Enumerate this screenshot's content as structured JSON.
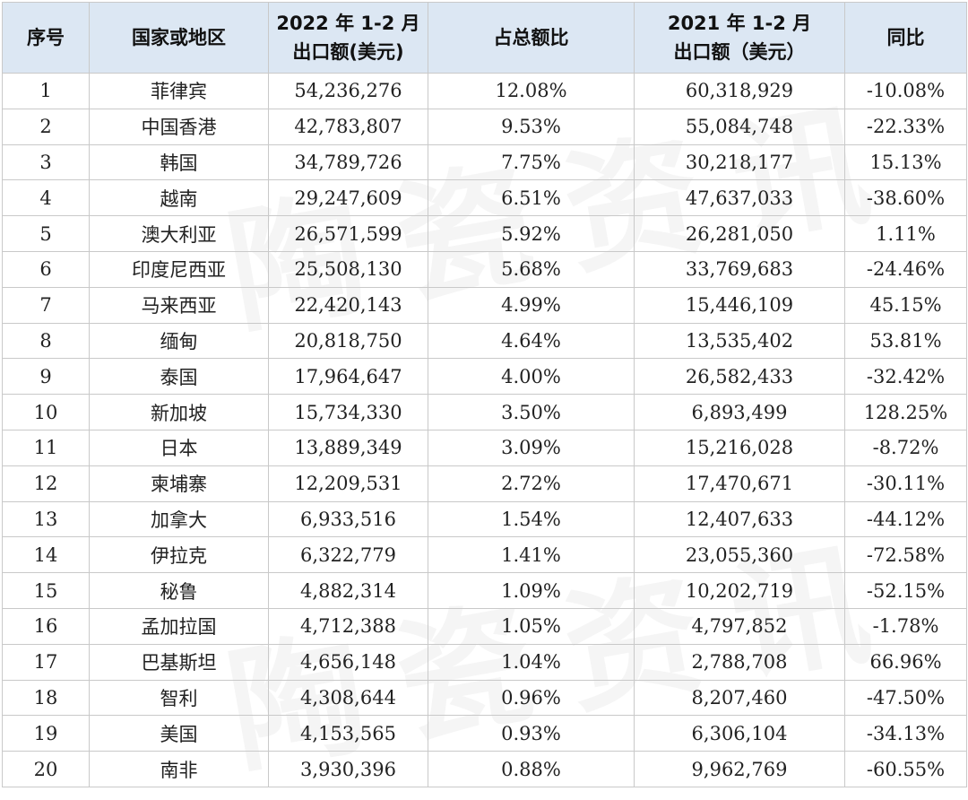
{
  "headers": {
    "index": "序号",
    "country": "国家或地区",
    "export2022_line1": "2022 年 1-2 月",
    "export2022_line2": "出口额(美元)",
    "share": "占总额比",
    "export2021_line1": "2021 年 1-2 月",
    "export2021_line2": "出口额（美元）",
    "yoy": "同比"
  },
  "rows": [
    {
      "index": "1",
      "country": "菲律宾",
      "export2022": "54,236,276",
      "share": "12.08%",
      "export2021": "60,318,929",
      "yoy": "-10.08%"
    },
    {
      "index": "2",
      "country": "中国香港",
      "export2022": "42,783,807",
      "share": "9.53%",
      "export2021": "55,084,748",
      "yoy": "-22.33%"
    },
    {
      "index": "3",
      "country": "韩国",
      "export2022": "34,789,726",
      "share": "7.75%",
      "export2021": "30,218,177",
      "yoy": "15.13%"
    },
    {
      "index": "4",
      "country": "越南",
      "export2022": "29,247,609",
      "share": "6.51%",
      "export2021": "47,637,033",
      "yoy": "-38.60%"
    },
    {
      "index": "5",
      "country": "澳大利亚",
      "export2022": "26,571,599",
      "share": "5.92%",
      "export2021": "26,281,050",
      "yoy": "1.11%"
    },
    {
      "index": "6",
      "country": "印度尼西亚",
      "export2022": "25,508,130",
      "share": "5.68%",
      "export2021": "33,769,683",
      "yoy": "-24.46%"
    },
    {
      "index": "7",
      "country": "马来西亚",
      "export2022": "22,420,143",
      "share": "4.99%",
      "export2021": "15,446,109",
      "yoy": "45.15%"
    },
    {
      "index": "8",
      "country": "缅甸",
      "export2022": "20,818,750",
      "share": "4.64%",
      "export2021": "13,535,402",
      "yoy": "53.81%"
    },
    {
      "index": "9",
      "country": "泰国",
      "export2022": "17,964,647",
      "share": "4.00%",
      "export2021": "26,582,433",
      "yoy": "-32.42%"
    },
    {
      "index": "10",
      "country": "新加坡",
      "export2022": "15,734,330",
      "share": "3.50%",
      "export2021": "6,893,499",
      "yoy": "128.25%"
    },
    {
      "index": "11",
      "country": "日本",
      "export2022": "13,889,349",
      "share": "3.09%",
      "export2021": "15,216,028",
      "yoy": "-8.72%"
    },
    {
      "index": "12",
      "country": "柬埔寨",
      "export2022": "12,209,531",
      "share": "2.72%",
      "export2021": "17,470,671",
      "yoy": "-30.11%"
    },
    {
      "index": "13",
      "country": "加拿大",
      "export2022": "6,933,516",
      "share": "1.54%",
      "export2021": "12,407,633",
      "yoy": "-44.12%"
    },
    {
      "index": "14",
      "country": "伊拉克",
      "export2022": "6,322,779",
      "share": "1.41%",
      "export2021": "23,055,360",
      "yoy": "-72.58%"
    },
    {
      "index": "15",
      "country": "秘鲁",
      "export2022": "4,882,314",
      "share": "1.09%",
      "export2021": "10,202,719",
      "yoy": "-52.15%"
    },
    {
      "index": "16",
      "country": "孟加拉国",
      "export2022": "4,712,388",
      "share": "1.05%",
      "export2021": "4,797,852",
      "yoy": "-1.78%"
    },
    {
      "index": "17",
      "country": "巴基斯坦",
      "export2022": "4,656,148",
      "share": "1.04%",
      "export2021": "2,788,708",
      "yoy": "66.96%"
    },
    {
      "index": "18",
      "country": "智利",
      "export2022": "4,308,644",
      "share": "0.96%",
      "export2021": "8,207,460",
      "yoy": "-47.50%"
    },
    {
      "index": "19",
      "country": "美国",
      "export2022": "4,153,565",
      "share": "0.93%",
      "export2021": "6,306,104",
      "yoy": "-34.13%"
    },
    {
      "index": "20",
      "country": "南非",
      "export2022": "3,930,396",
      "share": "0.88%",
      "export2021": "9,962,769",
      "yoy": "-60.55%"
    }
  ],
  "colors": {
    "header_bg": "#dce7f3",
    "border": "#c9c9c9",
    "text": "#222222"
  }
}
